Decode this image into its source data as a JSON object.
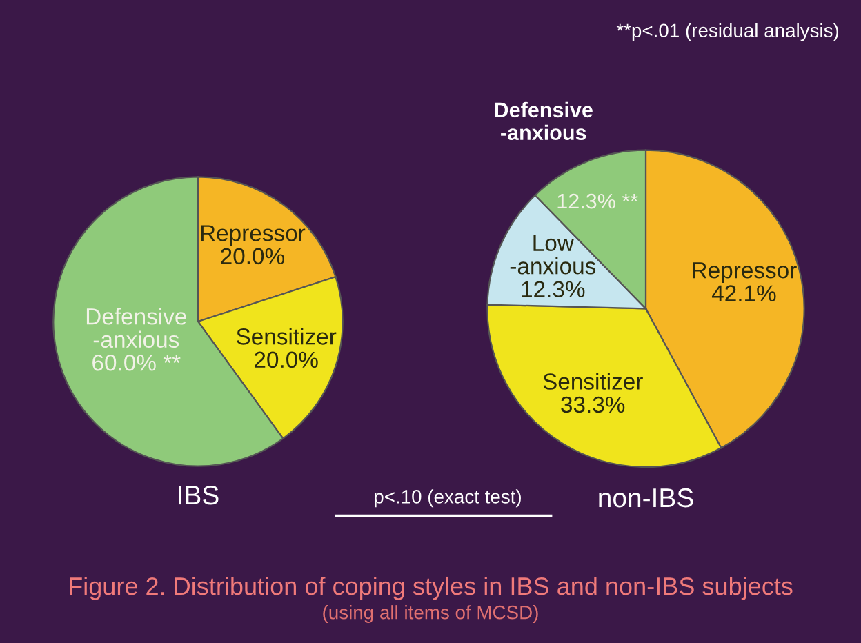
{
  "chart_data": [
    {
      "type": "pie",
      "title": "IBS",
      "categories": [
        "Repressor",
        "Sensitizer",
        "Defensive\n-anxious"
      ],
      "values": [
        20.0,
        20.0,
        60.0
      ],
      "colors": [
        "#f5b625",
        "#f0e41c",
        "#8fca7a"
      ],
      "value_labels": [
        "20.0%",
        "20.0%",
        "60.0% **"
      ],
      "annotations": [
        "Figure 2. Distribution of coping styles in IBS and non-IBS subjects",
        "(using all items of MCSD)"
      ]
    },
    {
      "type": "pie",
      "title": "non-IBS",
      "categories": [
        "Repressor",
        "Sensitizer",
        "Low\n-anxious",
        "Defensive\n-anxious"
      ],
      "values": [
        42.1,
        33.3,
        12.3,
        12.3
      ],
      "colors": [
        "#f5b625",
        "#f0e41c",
        "#c6e6ef",
        "#8fca7a"
      ],
      "value_labels": [
        "42.1%",
        "33.3%",
        "12.3%",
        "12.3% **"
      ],
      "annotations": [
        "**p<.01 (residual analysis)",
        "p<.10 (exact test)"
      ]
    }
  ]
}
